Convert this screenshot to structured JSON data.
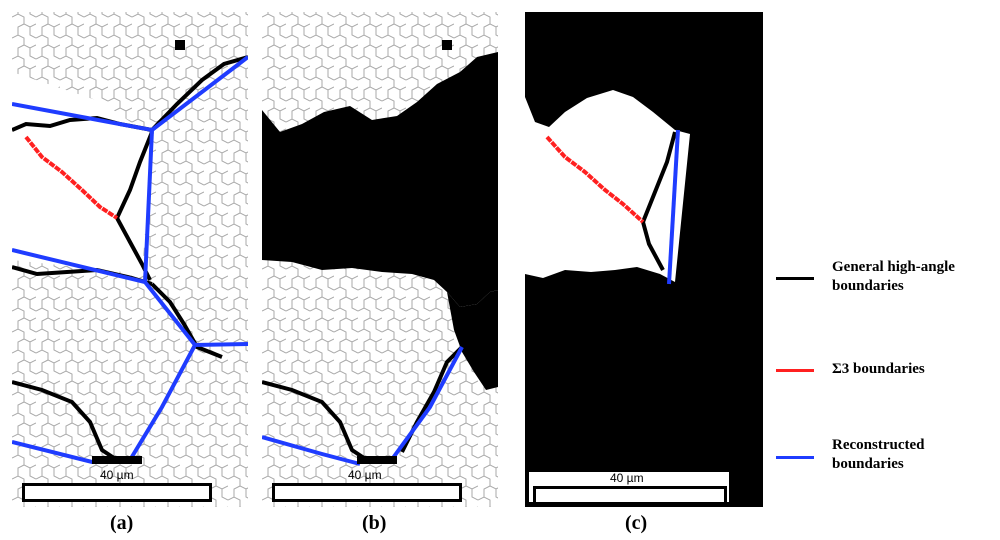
{
  "scale_bar_label": "40 µm",
  "panels": [
    {
      "caption": "(a)"
    },
    {
      "caption": "(b)"
    },
    {
      "caption": "(c)"
    }
  ],
  "legend": [
    {
      "label_line1": "General high-angle",
      "label_line2": "boundaries",
      "color": "#000000"
    },
    {
      "label_line1": "Σ3 boundaries",
      "label_line2": "",
      "color": "#ff2020"
    },
    {
      "label_line1": "Reconstructed",
      "label_line2": "boundaries",
      "color": "#1f3cff"
    }
  ]
}
